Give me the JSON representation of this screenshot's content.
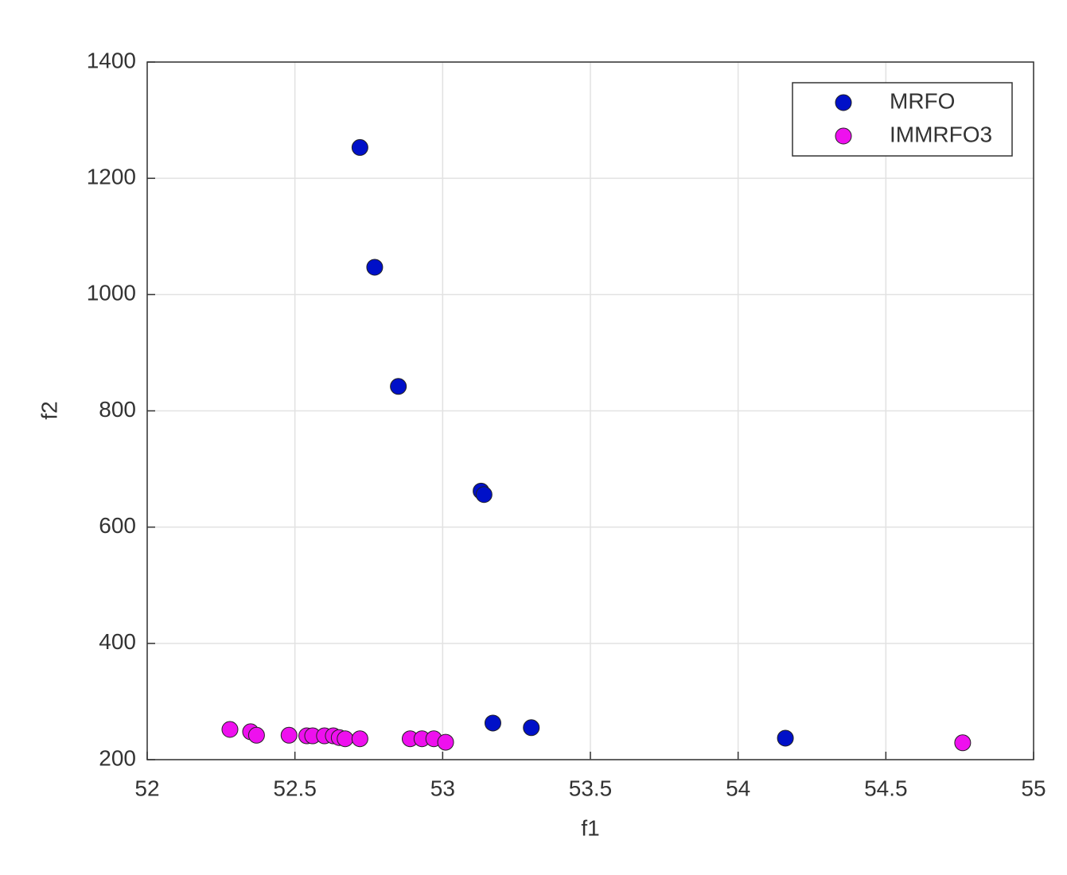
{
  "chart_data": {
    "type": "scatter",
    "x_label": "f1",
    "y_label": "f2",
    "xlim": [
      52,
      55
    ],
    "xticks": [
      52,
      52.5,
      53,
      53.5,
      54,
      54.5,
      55
    ],
    "ylim": [
      200,
      1400
    ],
    "yticks": [
      200,
      400,
      600,
      800,
      1000,
      1200,
      1400
    ],
    "grid": true,
    "legend_position": "northeast",
    "series": [
      {
        "name": "MRFO",
        "color": "#0010c8",
        "x": [
          52.72,
          52.77,
          52.85,
          53.13,
          53.14,
          53.17,
          53.3,
          54.16
        ],
        "values": [
          1253,
          1047,
          842,
          662,
          656,
          263,
          255,
          237
        ]
      },
      {
        "name": "IMMRFO3",
        "color": "#ee10ee",
        "x": [
          52.28,
          52.35,
          52.37,
          52.48,
          52.54,
          52.56,
          52.6,
          52.63,
          52.65,
          52.67,
          52.72,
          52.89,
          52.93,
          52.97,
          53.01,
          54.76
        ],
        "values": [
          252,
          248,
          242,
          242,
          241,
          241,
          241,
          241,
          238,
          236,
          236,
          236,
          236,
          236,
          230,
          229
        ]
      }
    ]
  }
}
